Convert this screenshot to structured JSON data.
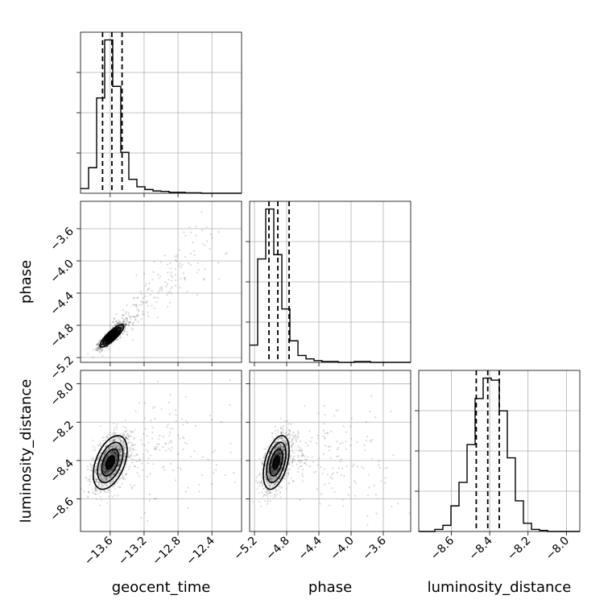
{
  "chart_data": {
    "type": "corner",
    "parameters": [
      "geocent_time",
      "phase",
      "luminosity_distance"
    ],
    "labels": {
      "geocent_time": "geocent_time",
      "phase": "phase",
      "luminosity_distance": "luminosity_distance"
    },
    "ranges": {
      "geocent_time": [
        -13.95,
        -12.05
      ],
      "phase": [
        -5.26,
        -3.26
      ],
      "luminosity_distance": [
        -8.77,
        -7.93
      ]
    },
    "ticks": {
      "geocent_time": [
        -13.6,
        -13.2,
        -12.8,
        -12.4
      ],
      "phase": [
        -5.2,
        -4.8,
        -4.4,
        -4.0,
        -3.6
      ],
      "luminosity_distance": [
        -8.6,
        -8.4,
        -8.2,
        -8.0
      ]
    },
    "tick_labels": {
      "geocent_time": [
        "−13.6",
        "−13.2",
        "−12.8",
        "−12.4"
      ],
      "phase": [
        "−5.2",
        "−4.8",
        "−4.4",
        "−4.0",
        "−3.6"
      ],
      "luminosity_distance": [
        "−8.6",
        "−8.4",
        "−8.2",
        "−8.0"
      ]
    },
    "quantiles": {
      "geocent_time": [
        -13.69,
        -13.58,
        -13.46
      ],
      "phase": [
        -5.02,
        -4.91,
        -4.77
      ],
      "luminosity_distance": [
        -8.47,
        -8.41,
        -8.35
      ]
    },
    "histograms": {
      "geocent_time": {
        "edges": [
          -13.95,
          -13.855,
          -13.76,
          -13.665,
          -13.57,
          -13.475,
          -13.38,
          -13.285,
          -13.19,
          -13.095,
          -13.0,
          -12.905,
          -12.81,
          -12.715,
          -12.62,
          -12.525,
          -12.43,
          -12.335,
          -12.24,
          -12.145,
          -12.05
        ],
        "counts": [
          10,
          55,
          205,
          330,
          230,
          88,
          30,
          14,
          8,
          5,
          4,
          2,
          2,
          1,
          1,
          0,
          0,
          0,
          0,
          0
        ]
      },
      "phase": {
        "edges": [
          -5.26,
          -5.16,
          -5.06,
          -4.96,
          -4.86,
          -4.76,
          -4.66,
          -4.56,
          -4.46,
          -4.36,
          -4.26,
          -4.16,
          -4.06,
          -3.96,
          -3.86,
          -3.76,
          -3.66,
          -3.56,
          -3.46,
          -3.36,
          -3.26
        ],
        "counts": [
          20,
          120,
          178,
          125,
          62,
          25,
          8,
          4,
          2,
          1,
          1,
          0,
          0,
          1,
          1,
          0,
          0,
          0,
          0,
          0
        ]
      },
      "luminosity_distance": {
        "edges": [
          -8.77,
          -8.728,
          -8.686,
          -8.644,
          -8.602,
          -8.56,
          -8.518,
          -8.476,
          -8.434,
          -8.392,
          -8.35,
          -8.308,
          -8.266,
          -8.224,
          -8.182,
          -8.14,
          -8.098,
          -8.056,
          -8.014,
          -7.972,
          -7.93
        ],
        "counts": [
          0,
          0,
          2,
          6,
          25,
          48,
          85,
          130,
          150,
          148,
          118,
          72,
          30,
          8,
          2,
          1,
          0,
          0,
          0,
          0
        ]
      }
    },
    "pairs": [
      {
        "x": "geocent_time",
        "y": "phase",
        "center": [
          -13.58,
          -4.93
        ],
        "sd": [
          0.07,
          0.07
        ],
        "correlation": 0.85,
        "tail": {
          "from": [
            -13.5,
            -4.85
          ],
          "to": [
            -12.4,
            -3.65
          ]
        }
      },
      {
        "x": "geocent_time",
        "y": "luminosity_distance",
        "center": [
          -13.6,
          -8.41
        ],
        "sd": [
          0.1,
          0.07
        ],
        "correlation": 0.45,
        "tail": {
          "from": [
            -13.5,
            -8.36
          ],
          "to": [
            -12.3,
            -8.3
          ]
        }
      },
      {
        "x": "phase",
        "y": "luminosity_distance",
        "center": [
          -4.93,
          -8.41
        ],
        "sd": [
          0.08,
          0.07
        ],
        "correlation": 0.45,
        "tail": {
          "from": [
            -4.8,
            -8.36
          ],
          "to": [
            -3.6,
            -8.4
          ]
        }
      }
    ],
    "contour_levels_sigma": [
      0.5,
      1.0,
      1.5,
      2.0
    ],
    "grid": true,
    "colors": {
      "line": "#000000",
      "grid": "#b0b0b0",
      "samples": "#000000",
      "contour_fill": "#000000"
    }
  }
}
